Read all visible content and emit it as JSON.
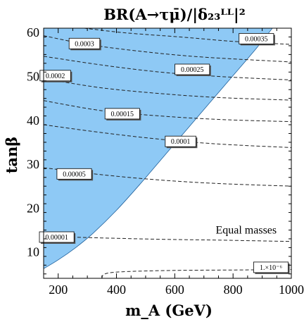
{
  "chart_data": {
    "type": "contour",
    "title": "BR(A→τμ̄)/|δ₂₃ᴸᴸ|²",
    "xlabel": "m_A (GeV)",
    "ylabel": "tanβ",
    "xlim": [
      150,
      1000
    ],
    "ylim": [
      4,
      61
    ],
    "x_ticks": [
      200,
      400,
      600,
      800,
      1000
    ],
    "y_ticks": [
      10,
      20,
      30,
      40,
      50,
      60
    ],
    "excluded_region": {
      "fill": "#8ec9f5",
      "boundary": [
        {
          "x": 150,
          "y": 6.2
        },
        {
          "x": 200,
          "y": 8.2
        },
        {
          "x": 260,
          "y": 11
        },
        {
          "x": 320,
          "y": 14.3
        },
        {
          "x": 400,
          "y": 19.5
        },
        {
          "x": 480,
          "y": 25.4
        },
        {
          "x": 560,
          "y": 31.6
        },
        {
          "x": 640,
          "y": 37.8
        },
        {
          "x": 720,
          "y": 44
        },
        {
          "x": 800,
          "y": 50.2
        },
        {
          "x": 880,
          "y": 56.4
        },
        {
          "x": 935,
          "y": 61
        }
      ]
    },
    "contours": [
      {
        "label": "0.00035",
        "points": [
          {
            "x": 230,
            "y": 61.5
          },
          {
            "x": 420,
            "y": 60
          },
          {
            "x": 620,
            "y": 59
          },
          {
            "x": 800,
            "y": 58
          },
          {
            "x": 1000,
            "y": 57.3
          }
        ],
        "label_at": {
          "x": 880,
          "y": 58.6
        }
      },
      {
        "label": "0.0003",
        "points": [
          {
            "x": 150,
            "y": 59.3
          },
          {
            "x": 300,
            "y": 57.3
          },
          {
            "x": 500,
            "y": 55.6
          },
          {
            "x": 700,
            "y": 54.4
          },
          {
            "x": 1000,
            "y": 53.3
          }
        ],
        "label_at": {
          "x": 290,
          "y": 57.5
        }
      },
      {
        "label": "0.00025",
        "points": [
          {
            "x": 150,
            "y": 54.6
          },
          {
            "x": 350,
            "y": 52.6
          },
          {
            "x": 550,
            "y": 51
          },
          {
            "x": 750,
            "y": 50
          },
          {
            "x": 1000,
            "y": 49.2
          }
        ],
        "label_at": {
          "x": 660,
          "y": 51.6
        }
      },
      {
        "label": "0.0002",
        "points": [
          {
            "x": 150,
            "y": 49.5
          },
          {
            "x": 350,
            "y": 47.4
          },
          {
            "x": 550,
            "y": 46.1
          },
          {
            "x": 750,
            "y": 45.2
          },
          {
            "x": 1000,
            "y": 44.6
          }
        ],
        "label_at": {
          "x": 190,
          "y": 50.2
        }
      },
      {
        "label": "0.00015",
        "points": [
          {
            "x": 150,
            "y": 44.5
          },
          {
            "x": 350,
            "y": 42.2
          },
          {
            "x": 550,
            "y": 41
          },
          {
            "x": 750,
            "y": 40.2
          },
          {
            "x": 1000,
            "y": 39.7
          }
        ],
        "label_at": {
          "x": 420,
          "y": 41.5
        }
      },
      {
        "label": "0.0001",
        "points": [
          {
            "x": 150,
            "y": 39
          },
          {
            "x": 350,
            "y": 37.2
          },
          {
            "x": 550,
            "y": 35.7
          },
          {
            "x": 750,
            "y": 34.6
          },
          {
            "x": 1000,
            "y": 33.8
          }
        ],
        "label_at": {
          "x": 620,
          "y": 35.2
        }
      },
      {
        "label": "0.00005",
        "points": [
          {
            "x": 150,
            "y": 29.2
          },
          {
            "x": 350,
            "y": 27.6
          },
          {
            "x": 550,
            "y": 26.4
          },
          {
            "x": 750,
            "y": 25.6
          },
          {
            "x": 1000,
            "y": 25
          }
        ],
        "label_at": {
          "x": 255,
          "y": 27.8
        }
      },
      {
        "label": "0.00001",
        "points": [
          {
            "x": 150,
            "y": 13.6
          },
          {
            "x": 350,
            "y": 13.2
          },
          {
            "x": 550,
            "y": 12.9
          },
          {
            "x": 750,
            "y": 12.7
          },
          {
            "x": 1000,
            "y": 12.4
          }
        ],
        "label_at": {
          "x": 195,
          "y": 13.4
        }
      },
      {
        "label": "1.×10⁻⁶",
        "points": [
          {
            "x": 350,
            "y": 4
          },
          {
            "x": 360,
            "y": 5
          },
          {
            "x": 420,
            "y": 5.5
          },
          {
            "x": 600,
            "y": 5.8
          },
          {
            "x": 800,
            "y": 5.9
          },
          {
            "x": 1000,
            "y": 6
          }
        ],
        "label_at": {
          "x": 930,
          "y": 6.5
        }
      }
    ],
    "annotations": [
      {
        "text": "Equal masses",
        "at": {
          "x": 845,
          "y": 14.2
        }
      }
    ]
  }
}
